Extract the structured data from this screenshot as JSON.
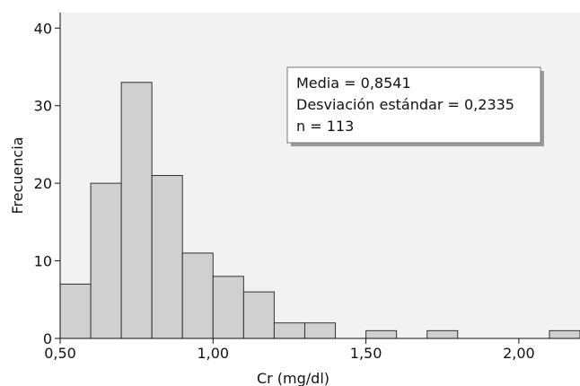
{
  "chart_data": {
    "type": "bar",
    "subtype": "histogram",
    "xlabel": "Cr (mg/dl)",
    "ylabel": "Frecuencia",
    "xlim": [
      0.5,
      2.2
    ],
    "ylim": [
      0,
      42
    ],
    "bin_width": 0.1,
    "x_ticks": [
      {
        "value": 0.5,
        "label": "0,50"
      },
      {
        "value": 1.0,
        "label": "1,00"
      },
      {
        "value": 1.5,
        "label": "1,50"
      },
      {
        "value": 2.0,
        "label": "2,00"
      }
    ],
    "y_ticks": [
      {
        "value": 0,
        "label": "0"
      },
      {
        "value": 10,
        "label": "10"
      },
      {
        "value": 20,
        "label": "20"
      },
      {
        "value": 30,
        "label": "30"
      },
      {
        "value": 40,
        "label": "40"
      }
    ],
    "bins": [
      {
        "start": 0.5,
        "end": 0.6,
        "value": 7
      },
      {
        "start": 0.6,
        "end": 0.7,
        "value": 20
      },
      {
        "start": 0.7,
        "end": 0.8,
        "value": 33
      },
      {
        "start": 0.8,
        "end": 0.9,
        "value": 21
      },
      {
        "start": 0.9,
        "end": 1.0,
        "value": 11
      },
      {
        "start": 1.0,
        "end": 1.1,
        "value": 8
      },
      {
        "start": 1.1,
        "end": 1.2,
        "value": 6
      },
      {
        "start": 1.2,
        "end": 1.3,
        "value": 2
      },
      {
        "start": 1.3,
        "end": 1.4,
        "value": 2
      },
      {
        "start": 1.5,
        "end": 1.6,
        "value": 1
      },
      {
        "start": 1.7,
        "end": 1.8,
        "value": 1
      },
      {
        "start": 2.1,
        "end": 2.2,
        "value": 1
      }
    ],
    "stats_box": {
      "lines": [
        "Media = 0,8541",
        "Desviación estándar = 0,2335",
        "n = 113"
      ]
    },
    "grid": false,
    "colors": {
      "plot_background": "#f2f2f2",
      "bar_fill": "#d0d0d0",
      "bar_stroke": "#333333"
    }
  }
}
